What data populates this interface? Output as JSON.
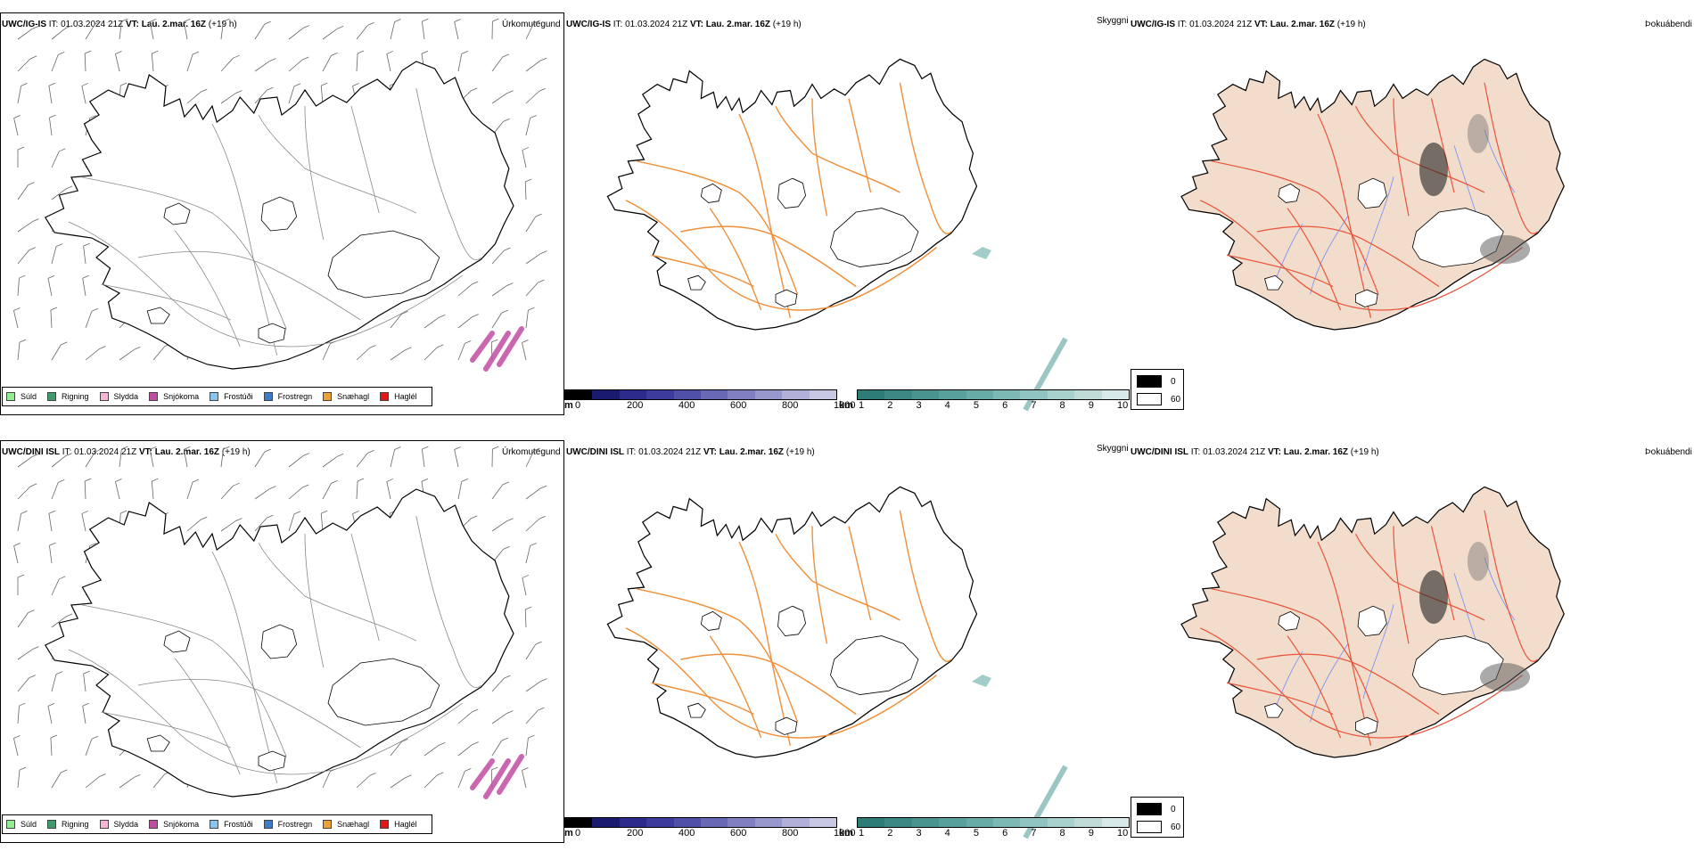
{
  "rows": [
    {
      "model": "UWC/IG-IS",
      "it_label": "IT:",
      "it_value": "01.03.2024 21Z",
      "vt_label": "VT:",
      "vt_value": "Lau. 2.mar. 16Z",
      "lead": "(+19 h)",
      "panel1_name": "Úrkomutegund",
      "panel2_name": "Skyggni",
      "panel3_name": "Þokuábendi"
    },
    {
      "model": "UWC/DINI ISL",
      "it_label": "IT:",
      "it_value": "01.03.2024 21Z",
      "vt_label": "VT:",
      "vt_value": "Lau. 2.mar. 16Z",
      "lead": "(+19 h)",
      "panel1_name": "Úrkomutegund",
      "panel2_name": "Skyggni",
      "panel3_name": "Þokuábendi"
    }
  ],
  "precip_legend": [
    {
      "label": "Súld",
      "color": "#90ee90"
    },
    {
      "label": "Rigning",
      "color": "#3c9c6c"
    },
    {
      "label": "Slydda",
      "color": "#f4b6d8"
    },
    {
      "label": "Snjókoma",
      "color": "#c04ea0"
    },
    {
      "label": "Frostúði",
      "color": "#8cc4f0"
    },
    {
      "label": "Frostregn",
      "color": "#3c7cc8"
    },
    {
      "label": "Snæhagl",
      "color": "#f0a030"
    },
    {
      "label": "Haglél",
      "color": "#e01818"
    }
  ],
  "elevation_bar": {
    "unit": "m",
    "ticks": [
      "0",
      "200",
      "400",
      "600",
      "800",
      "1000"
    ],
    "colors": [
      "#000000",
      "#1a1a6e",
      "#2c2c8c",
      "#3c3c9c",
      "#5050a8",
      "#6868b4",
      "#8080c0",
      "#9898cc",
      "#b0b0d8",
      "#c8c8e4"
    ]
  },
  "visibility_bar": {
    "unit": "km",
    "ticks": [
      "1",
      "2",
      "3",
      "4",
      "5",
      "6",
      "7",
      "8",
      "9",
      "10"
    ],
    "colors": [
      "#2e7c78",
      "#3c8884",
      "#4a9490",
      "#58a09c",
      "#68aca8",
      "#7cb8b4",
      "#90c4c0",
      "#a8d0cc",
      "#c0dcd8",
      "#d8eae8"
    ]
  },
  "fog_key": [
    {
      "label": "0",
      "color": "#000000"
    },
    {
      "label": "60",
      "color": "#ffffff"
    }
  ]
}
